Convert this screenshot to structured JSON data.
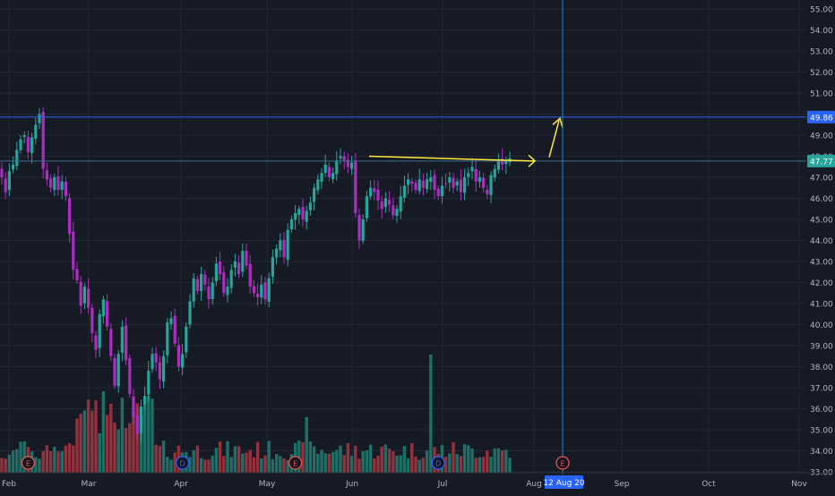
{
  "colors": {
    "background": "#161a25",
    "grid": "#232735",
    "axis_text": "#b2b5be",
    "up": "#26a69a",
    "down": "#ab2ec0",
    "vol_up": "#1f6f66",
    "vol_down": "#93323c",
    "hline": "#2962ff",
    "annotation": "#ffeb3b",
    "crosshair": "#2a7fc1",
    "badge_e": "#ef5350",
    "badge_d": "#2962ff"
  },
  "axis": {
    "y_ticks": [
      "55.00",
      "54.00",
      "53.00",
      "52.00",
      "51.00",
      "50.00",
      "49.00",
      "48.00",
      "47.00",
      "46.00",
      "45.00",
      "44.00",
      "43.00",
      "42.00",
      "41.00",
      "40.00",
      "39.00",
      "38.00",
      "37.00",
      "36.00",
      "35.00",
      "34.00",
      "33.00"
    ],
    "x_ticks": [
      "Feb",
      "Mar",
      "Apr",
      "May",
      "Jun",
      "Jul",
      "Aug",
      "Sep",
      "Oct",
      "Nov"
    ],
    "crosshair_date": "12 Aug 20"
  },
  "price_labels": [
    {
      "value": 49.86,
      "label": "49.86",
      "color": "#2962ff"
    },
    {
      "value": 47.77,
      "label": "47.77",
      "color": "#26a69a"
    }
  ],
  "events": [
    {
      "type": "E",
      "index": 7
    },
    {
      "type": "D",
      "index": 48
    },
    {
      "type": "E",
      "index": 78
    },
    {
      "type": "D",
      "index": 116
    },
    {
      "type": "E",
      "index": 147
    }
  ],
  "chart_data": {
    "type": "candlestick",
    "ylim": [
      33,
      55.3
    ],
    "x": [
      "Feb",
      "Mar",
      "Apr",
      "May",
      "Jun",
      "Jul",
      "Aug",
      "Sep",
      "Oct",
      "Nov"
    ],
    "closes": [
      47.0,
      46.3,
      47.3,
      47.6,
      48.3,
      48.8,
      49.0,
      48.2,
      48.9,
      49.5,
      50.0,
      47.4,
      46.9,
      46.5,
      47.0,
      46.4,
      46.8,
      46.1,
      44.3,
      42.6,
      42.1,
      40.9,
      41.8,
      40.8,
      39.6,
      38.8,
      40.5,
      41.2,
      39.9,
      38.5,
      37.1,
      38.6,
      39.9,
      38.3,
      36.7,
      35.6,
      34.8,
      36.1,
      36.6,
      37.8,
      38.6,
      38.2,
      37.4,
      38.5,
      40.1,
      40.3,
      39.1,
      38.0,
      38.6,
      39.9,
      41.1,
      42.2,
      41.6,
      42.4,
      41.9,
      41.2,
      42.0,
      42.9,
      42.4,
      41.5,
      41.8,
      42.6,
      43.0,
      42.4,
      43.5,
      42.8,
      41.8,
      41.5,
      41.3,
      41.9,
      41.2,
      42.2,
      43.2,
      43.6,
      44.0,
      43.2,
      44.5,
      45.0,
      45.3,
      45.5,
      45.0,
      45.4,
      45.8,
      46.5,
      46.9,
      47.2,
      47.6,
      47.0,
      47.2,
      47.8,
      48.0,
      47.8,
      47.5,
      47.7,
      45.3,
      44.0,
      45.0,
      46.1,
      46.5,
      46.3,
      45.9,
      45.5,
      46.0,
      45.7,
      45.2,
      45.5,
      46.1,
      46.6,
      46.9,
      46.7,
      46.4,
      46.9,
      46.5,
      46.9,
      47.0,
      46.4,
      46.1,
      46.6,
      46.7,
      47.0,
      46.5,
      46.8,
      46.3,
      47.0,
      47.2,
      47.5,
      46.8,
      47.0,
      46.5,
      46.2,
      47.1,
      47.4,
      47.8,
      47.6,
      47.77,
      47.9
    ]
  }
}
